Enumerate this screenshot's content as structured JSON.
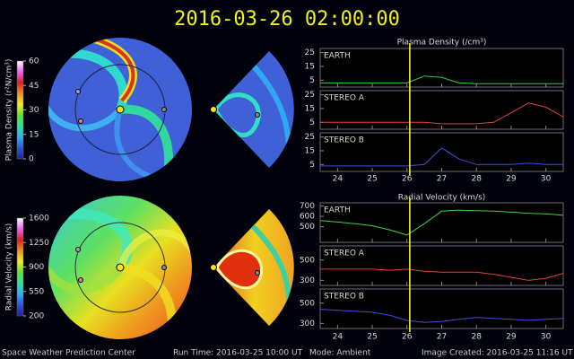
{
  "header": {
    "title": "2016-03-26  02:00:00"
  },
  "footer": {
    "left": "Space Weather Prediction Center",
    "run_time": "Run Time: 2016-03-25 10:00 UT",
    "mode": "Mode: Ambient",
    "created": "Image Created: 2016-03-25 11:16 UT"
  },
  "chart_data": [
    {
      "type": "line",
      "title": "Plasma Density (/cm³)",
      "x": [
        23.5,
        24,
        24.5,
        25,
        25.5,
        26,
        26.5,
        27,
        27.5,
        28,
        28.5,
        29,
        29.5,
        30,
        30.5
      ],
      "xlim": [
        23.5,
        30.5
      ],
      "xticks": [
        24,
        25,
        26,
        27,
        28,
        29,
        30
      ],
      "marker_x": 26.08,
      "marker_color": "#ffff33",
      "series": [
        {
          "name": "EARTH",
          "color": "#40d040",
          "ylim": [
            0,
            28
          ],
          "yticks": [
            5,
            15,
            25
          ],
          "values": [
            3,
            3,
            3,
            3,
            3,
            3,
            8,
            7,
            3,
            2.5,
            2.5,
            2.5,
            2.5,
            2.5,
            2.5
          ]
        },
        {
          "name": "STEREO A",
          "color": "#e04040",
          "ylim": [
            0,
            28
          ],
          "yticks": [
            5,
            15,
            25
          ],
          "values": [
            5,
            5,
            5,
            5,
            5,
            5,
            5,
            4,
            4,
            4,
            5,
            12,
            19,
            16,
            9
          ]
        },
        {
          "name": "STEREO B",
          "color": "#4050e0",
          "ylim": [
            0,
            28
          ],
          "yticks": [
            5,
            15,
            25
          ],
          "values": [
            4,
            4,
            4,
            4,
            4,
            4,
            5,
            17,
            9,
            5,
            5,
            5,
            6,
            5,
            5
          ]
        }
      ]
    },
    {
      "type": "line",
      "title": "Radial Velocity (km/s)",
      "x": [
        23.5,
        24,
        24.5,
        25,
        25.5,
        26,
        26.5,
        27,
        27.5,
        28,
        28.5,
        29,
        29.5,
        30,
        30.5
      ],
      "xlim": [
        23.5,
        30.5
      ],
      "xticks": [
        24,
        25,
        26,
        27,
        28,
        29,
        30
      ],
      "marker_x": 26.08,
      "marker_color": "#ffff33",
      "series": [
        {
          "name": "EARTH",
          "color": "#40d040",
          "ylim": [
            350,
            730
          ],
          "yticks": [
            500,
            600,
            700
          ],
          "values": [
            560,
            545,
            530,
            510,
            470,
            420,
            530,
            650,
            660,
            655,
            650,
            640,
            630,
            625,
            610
          ]
        },
        {
          "name": "STEREO A",
          "color": "#e04040",
          "ylim": [
            250,
            640
          ],
          "yticks": [
            300,
            500
          ],
          "values": [
            410,
            410,
            410,
            410,
            400,
            410,
            390,
            380,
            380,
            380,
            360,
            330,
            300,
            320,
            370
          ]
        },
        {
          "name": "STEREO B",
          "color": "#4050e0",
          "ylim": [
            250,
            640
          ],
          "yticks": [
            300,
            500
          ],
          "values": [
            440,
            430,
            420,
            410,
            380,
            330,
            310,
            320,
            340,
            360,
            350,
            340,
            330,
            340,
            350
          ]
        }
      ]
    },
    {
      "type": "colorbar",
      "title": "Plasma Density (r²N/cm³)",
      "ylim": [
        0,
        60
      ],
      "yticks": [
        0,
        15,
        30,
        45,
        60
      ],
      "colors": [
        "#2020a0",
        "#3050e0",
        "#30b0f0",
        "#30e0a0",
        "#60e030",
        "#f0f020",
        "#f09020",
        "#e02020",
        "#f060f0",
        "#ffffff"
      ]
    },
    {
      "type": "colorbar",
      "title": "Radial Velocity (km/s)",
      "ylim": [
        200,
        1600
      ],
      "yticks": [
        200,
        550,
        900,
        1250,
        1600
      ],
      "colors": [
        "#2020a0",
        "#3050e0",
        "#30b0f0",
        "#30e0a0",
        "#60e030",
        "#f0f020",
        "#f09020",
        "#e02020",
        "#f060f0",
        "#ffffff"
      ]
    }
  ]
}
